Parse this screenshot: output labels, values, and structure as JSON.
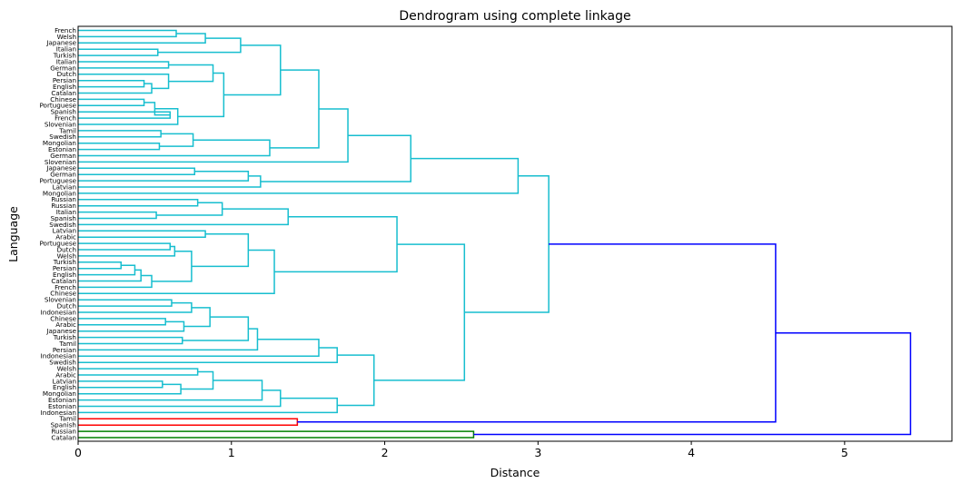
{
  "chart_data": {
    "type": "dendrogram",
    "title": "Dendrogram using complete linkage",
    "xlabel": "Distance",
    "ylabel": "Language",
    "xlim": [
      0,
      5.7
    ],
    "xticks": [
      0,
      1,
      2,
      3,
      4,
      5
    ],
    "orientation": "horizontal",
    "colors": {
      "cluster_a": "#17becf",
      "cluster_b": "#ff0000",
      "cluster_c": "#008000",
      "above_threshold": "#0000ff"
    },
    "leaves": [
      "French",
      "Welsh",
      "Japanese",
      "Italian",
      "Turkish",
      "Italian",
      "German",
      "Dutch",
      "Persian",
      "English",
      "Catalan",
      "Chinese",
      "Portuguese",
      "Spanish",
      "French",
      "Slovenian",
      "Tamil",
      "Swedish",
      "Mongolian",
      "Estonian",
      "German",
      "Slovenian",
      "Japanese",
      "German",
      "Portuguese",
      "Latvian",
      "Mongolian",
      "Russian",
      "Russian",
      "Italian",
      "Spanish",
      "Swedish",
      "Latvian",
      "Arabic",
      "Portuguese",
      "Dutch",
      "Welsh",
      "Turkish",
      "Persian",
      "English",
      "Catalan",
      "French",
      "Chinese",
      "Slovenian",
      "Dutch",
      "Indonesian",
      "Chinese",
      "Arabic",
      "Japanese",
      "Turkish",
      "Tamil",
      "Persian",
      "Indonesian",
      "Swedish",
      "Welsh",
      "Arabic",
      "Latvian",
      "English",
      "Mongolian",
      "Estonian",
      "Estonian",
      "Indonesian",
      "Tamil",
      "Spanish",
      "Russian",
      "Catalan"
    ],
    "merges": [
      {
        "a": 0,
        "b": 1,
        "h": 0.64,
        "c": "cluster_a"
      },
      {
        "a": 3,
        "b": 4,
        "h": 0.52,
        "c": "cluster_a"
      },
      {
        "a": 66,
        "b": 2,
        "h": 0.83,
        "c": "cluster_a"
      },
      {
        "a": 68,
        "b": 67,
        "h": 1.06,
        "c": "cluster_a"
      },
      {
        "a": 8,
        "b": 9,
        "h": 0.43,
        "c": "cluster_a"
      },
      {
        "a": 70,
        "b": 10,
        "h": 0.48,
        "c": "cluster_a"
      },
      {
        "a": 7,
        "b": 71,
        "h": 0.59,
        "c": "cluster_a"
      },
      {
        "a": 5,
        "b": 6,
        "h": 0.59,
        "c": "cluster_a"
      },
      {
        "a": 73,
        "b": 72,
        "h": 0.88,
        "c": "cluster_a"
      },
      {
        "a": 11,
        "b": 12,
        "h": 0.43,
        "c": "cluster_a"
      },
      {
        "a": 13,
        "b": 14,
        "h": 0.6,
        "c": "cluster_a"
      },
      {
        "a": 75,
        "b": 76,
        "h": 0.5,
        "c": "cluster_a"
      },
      {
        "a": 77,
        "b": 15,
        "h": 0.65,
        "c": "cluster_a"
      },
      {
        "a": 74,
        "b": 78,
        "h": 0.95,
        "c": "cluster_a"
      },
      {
        "a": 69,
        "b": 79,
        "h": 1.32,
        "c": "cluster_a"
      },
      {
        "a": 16,
        "b": 17,
        "h": 0.54,
        "c": "cluster_a"
      },
      {
        "a": 18,
        "b": 19,
        "h": 0.53,
        "c": "cluster_a"
      },
      {
        "a": 81,
        "b": 82,
        "h": 0.75,
        "c": "cluster_a"
      },
      {
        "a": 83,
        "b": 20,
        "h": 1.25,
        "c": "cluster_a"
      },
      {
        "a": 80,
        "b": 84,
        "h": 1.57,
        "c": "cluster_a"
      },
      {
        "a": 85,
        "b": 21,
        "h": 1.76,
        "c": "cluster_a"
      },
      {
        "a": 22,
        "b": 23,
        "h": 0.76,
        "c": "cluster_a"
      },
      {
        "a": 87,
        "b": 24,
        "h": 1.11,
        "c": "cluster_a"
      },
      {
        "a": 88,
        "b": 25,
        "h": 1.19,
        "c": "cluster_a"
      },
      {
        "a": 86,
        "b": 89,
        "h": 2.17,
        "c": "cluster_a"
      },
      {
        "a": 90,
        "b": 26,
        "h": 2.87,
        "c": "cluster_a"
      },
      {
        "a": 27,
        "b": 28,
        "h": 0.78,
        "c": "cluster_a"
      },
      {
        "a": 29,
        "b": 30,
        "h": 0.51,
        "c": "cluster_a"
      },
      {
        "a": 92,
        "b": 93,
        "h": 0.94,
        "c": "cluster_a"
      },
      {
        "a": 94,
        "b": 31,
        "h": 1.37,
        "c": "cluster_a"
      },
      {
        "a": 32,
        "b": 33,
        "h": 0.83,
        "c": "cluster_a"
      },
      {
        "a": 34,
        "b": 35,
        "h": 0.6,
        "c": "cluster_a"
      },
      {
        "a": 97,
        "b": 36,
        "h": 0.63,
        "c": "cluster_a"
      },
      {
        "a": 37,
        "b": 38,
        "h": 0.28,
        "c": "cluster_a"
      },
      {
        "a": 99,
        "b": 39,
        "h": 0.37,
        "c": "cluster_a"
      },
      {
        "a": 100,
        "b": 40,
        "h": 0.41,
        "c": "cluster_a"
      },
      {
        "a": 101,
        "b": 41,
        "h": 0.48,
        "c": "cluster_a"
      },
      {
        "a": 98,
        "b": 102,
        "h": 0.74,
        "c": "cluster_a"
      },
      {
        "a": 96,
        "b": 103,
        "h": 1.11,
        "c": "cluster_a"
      },
      {
        "a": 104,
        "b": 42,
        "h": 1.28,
        "c": "cluster_a"
      },
      {
        "a": 95,
        "b": 105,
        "h": 2.08,
        "c": "cluster_a"
      },
      {
        "a": 43,
        "b": 44,
        "h": 0.61,
        "c": "cluster_a"
      },
      {
        "a": 107,
        "b": 45,
        "h": 0.74,
        "c": "cluster_a"
      },
      {
        "a": 46,
        "b": 47,
        "h": 0.57,
        "c": "cluster_a"
      },
      {
        "a": 109,
        "b": 48,
        "h": 0.69,
        "c": "cluster_a"
      },
      {
        "a": 108,
        "b": 110,
        "h": 0.86,
        "c": "cluster_a"
      },
      {
        "a": 49,
        "b": 50,
        "h": 0.68,
        "c": "cluster_a"
      },
      {
        "a": 111,
        "b": 112,
        "h": 1.11,
        "c": "cluster_a"
      },
      {
        "a": 113,
        "b": 51,
        "h": 1.17,
        "c": "cluster_a"
      },
      {
        "a": 114,
        "b": 52,
        "h": 1.57,
        "c": "cluster_a"
      },
      {
        "a": 115,
        "b": 53,
        "h": 1.69,
        "c": "cluster_a"
      },
      {
        "a": 54,
        "b": 55,
        "h": 0.78,
        "c": "cluster_a"
      },
      {
        "a": 56,
        "b": 57,
        "h": 0.55,
        "c": "cluster_a"
      },
      {
        "a": 118,
        "b": 58,
        "h": 0.67,
        "c": "cluster_a"
      },
      {
        "a": 117,
        "b": 119,
        "h": 0.88,
        "c": "cluster_a"
      },
      {
        "a": 120,
        "b": 59,
        "h": 1.2,
        "c": "cluster_a"
      },
      {
        "a": 121,
        "b": 60,
        "h": 1.32,
        "c": "cluster_a"
      },
      {
        "a": 122,
        "b": 61,
        "h": 1.69,
        "c": "cluster_a"
      },
      {
        "a": 116,
        "b": 123,
        "h": 1.93,
        "c": "cluster_a"
      },
      {
        "a": 106,
        "b": 124,
        "h": 2.52,
        "c": "cluster_a"
      },
      {
        "a": 91,
        "b": 125,
        "h": 3.07,
        "c": "cluster_a"
      },
      {
        "a": 62,
        "b": 63,
        "h": 1.43,
        "c": "cluster_b"
      },
      {
        "a": 126,
        "b": 127,
        "h": 4.55,
        "c": "above_threshold"
      },
      {
        "a": 64,
        "b": 65,
        "h": 2.58,
        "c": "cluster_c"
      },
      {
        "a": 128,
        "b": 129,
        "h": 5.43,
        "c": "above_threshold"
      }
    ]
  }
}
